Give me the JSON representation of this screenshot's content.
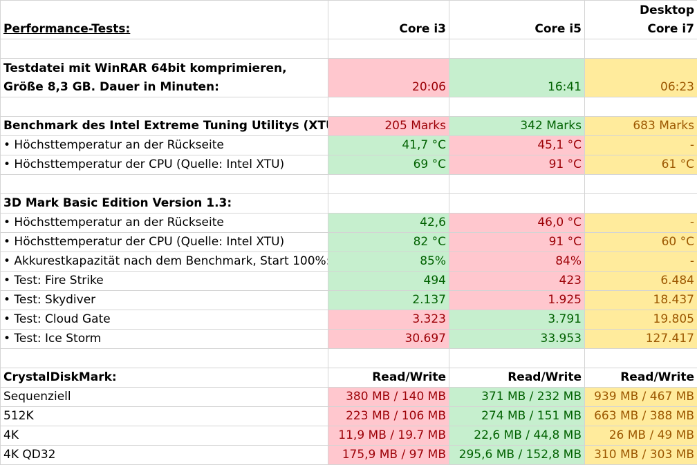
{
  "header": {
    "title": "Performance-Tests:",
    "col1": "Core i3",
    "col2": "Core i5",
    "col3_line1": "Desktop",
    "col3_line2": "Core i7"
  },
  "winrar": {
    "line1": "Testdatei mit WinRAR 64bit komprimieren,",
    "line2": "Größe 8,3 GB. Dauer in Minuten:",
    "v1": "20:06",
    "v2": "16:41",
    "v3": "06:23"
  },
  "xtu": {
    "title": "Benchmark des Intel Extreme Tuning Utilitys (XTU):",
    "v1": "205 Marks",
    "v2": "342 Marks",
    "v3": "683 Marks",
    "rows": [
      {
        "label": "• Höchsttemperatur an der Rückseite",
        "v1": "41,7  °C",
        "v2": "45,1  °C",
        "v3": "-"
      },
      {
        "label": "• Höchsttemperatur der CPU (Quelle: Intel XTU)",
        "v1": "69  °C",
        "v2": "91  °C",
        "v3": "61  °C"
      }
    ]
  },
  "mark3d": {
    "title": "3D Mark Basic Edition Version 1.3:",
    "rows": [
      {
        "label": "• Höchsttemperatur an der Rückseite",
        "v1": "42,6",
        "v2": "46,0  °C",
        "v3": "-"
      },
      {
        "label": "• Höchsttemperatur der CPU (Quelle: Intel XTU)",
        "v1": "82  °C",
        "v2": "91  °C",
        "v3": "60  °C"
      },
      {
        "label": "• Akkurestkapazität nach dem Benchmark, Start 100%:",
        "v1": "85%",
        "v2": "84%",
        "v3": "-"
      },
      {
        "label": "• Test: Fire Strike",
        "v1": "494",
        "v2": "423",
        "v3": "6.484"
      },
      {
        "label": "• Test: Skydiver",
        "v1": "2.137",
        "v2": "1.925",
        "v3": "18.437"
      },
      {
        "label": "• Test: Cloud Gate",
        "v1": "3.323",
        "v2": "3.791",
        "v3": "19.805"
      },
      {
        "label": "• Test: Ice Storm",
        "v1": "30.697",
        "v2": "33.953",
        "v3": "127.417"
      }
    ]
  },
  "crystal": {
    "title": "CrystalDiskMark:",
    "h1": "Read/Write",
    "h2": "Read/Write",
    "h3": "Read/Write",
    "rows": [
      {
        "label": "Sequenziell",
        "v1": "380 MB / 140 MB",
        "v2": "371 MB / 232 MB",
        "v3": "939 MB / 467 MB"
      },
      {
        "label": "512K",
        "v1": "223 MB / 106 MB",
        "v2": "274 MB / 151 MB",
        "v3": "663 MB / 388 MB"
      },
      {
        "label": "4K",
        "v1": "11,9 MB / 19.7 MB",
        "v2": "22,6 MB / 44,8 MB",
        "v3": "26 MB / 49 MB"
      },
      {
        "label": "4K QD32",
        "v1": "175,9 MB / 97 MB",
        "v2": "295,6 MB / 152,8 MB",
        "v3": "310 MB / 303 MB"
      }
    ]
  },
  "colors": {
    "red_fill": "#ffc7ce",
    "red_text": "#9c0006",
    "green_fill": "#c6efce",
    "green_text": "#006100",
    "yellow_fill": "#ffeb9c",
    "yellow_text": "#9c5700"
  }
}
